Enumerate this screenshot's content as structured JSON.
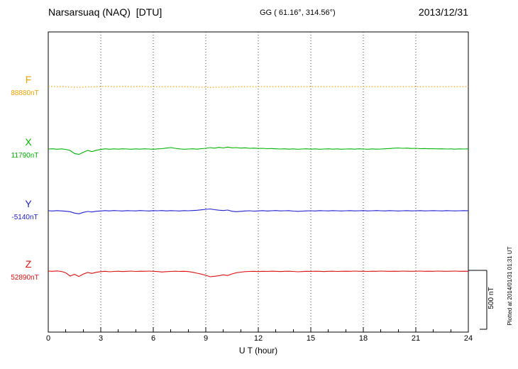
{
  "header": {
    "station": "Narsarsuaq (NAQ)  [DTU]",
    "coords": "GG ( 61.16°, 314.56°)",
    "date": "2013/12/31"
  },
  "scale_bar": {
    "label": "500 nT",
    "value_nT": 500
  },
  "right_note": "Plotted at 2014/01/31 01:31 UT",
  "chart_data": {
    "type": "line",
    "title": "Narsarsuaq (NAQ) [DTU] magnetogram 2013/12/31",
    "xlabel": "U T (hour)",
    "ylabel": "",
    "xlim": [
      0,
      24
    ],
    "x_ticks": [
      0,
      3,
      6,
      9,
      12,
      15,
      18,
      21,
      24
    ],
    "grid_hours": [
      3,
      6,
      9,
      12,
      15,
      18,
      21
    ],
    "sample_interval_hours": 0.25,
    "scale_nT": 500,
    "grid": true,
    "legend_position": "left-margin",
    "series": [
      {
        "name": "F",
        "baseline_nT": 88880,
        "baseline_label": "88880nT",
        "color": "#f2a200",
        "style": "dotted",
        "offsets_nT": [
          0,
          1,
          -1,
          0,
          -2,
          -5,
          -4,
          -6,
          -4,
          -2,
          -3,
          -1,
          0,
          1,
          0,
          -1,
          0,
          1,
          0,
          -1,
          0,
          1,
          0,
          -1,
          0,
          -1,
          -2,
          -1,
          0,
          -1,
          0,
          -1,
          -2,
          -3,
          -4,
          -5,
          -6,
          -7,
          -6,
          -5,
          -4,
          -5,
          -3,
          -2,
          -1,
          -1,
          0,
          -1,
          0,
          0,
          -1,
          0,
          -1,
          0,
          -1,
          0,
          -1,
          -1,
          0,
          -1,
          0,
          -1,
          0,
          -1,
          0,
          -1,
          0,
          -1,
          0,
          -1,
          0,
          -1,
          0,
          -1,
          0,
          -1,
          0,
          -1,
          0,
          -1,
          0,
          -1,
          0,
          -1,
          0,
          -1,
          0,
          -1,
          0,
          -1,
          0,
          -1,
          0,
          -1,
          0,
          -1,
          0
        ]
      },
      {
        "name": "X",
        "baseline_nT": 11790,
        "baseline_label": "11790nT",
        "color": "#00b400",
        "style": "solid",
        "offsets_nT": [
          0,
          2,
          -2,
          1,
          -3,
          -12,
          -38,
          -46,
          -28,
          -12,
          -22,
          -10,
          -4,
          2,
          -2,
          1,
          -1,
          2,
          0,
          -2,
          1,
          -1,
          2,
          0,
          -2,
          1,
          3,
          8,
          12,
          6,
          1,
          -2,
          0,
          2,
          -1,
          3,
          6,
          12,
          7,
          14,
          9,
          16,
          10,
          12,
          8,
          10,
          6,
          8,
          5,
          6,
          3,
          4,
          2,
          0,
          2,
          -1,
          1,
          -2,
          0,
          2,
          -1,
          1,
          -2,
          0,
          2,
          -1,
          1,
          -2,
          0,
          1,
          -1,
          2,
          0,
          -2,
          1,
          -1,
          0,
          2,
          4,
          7,
          9,
          6,
          8,
          5,
          6,
          3,
          4,
          2,
          3,
          1,
          2,
          0,
          1,
          -1,
          1,
          0,
          2
        ]
      },
      {
        "name": "Y",
        "baseline_nT": -5140,
        "baseline_label": "-5140nT",
        "color": "#2020d0",
        "style": "solid",
        "offsets_nT": [
          0,
          -2,
          1,
          -1,
          -4,
          -8,
          -20,
          -26,
          -14,
          -6,
          -10,
          -4,
          -2,
          1,
          -1,
          2,
          0,
          -2,
          1,
          0,
          -1,
          2,
          0,
          -2,
          1,
          0,
          2,
          -1,
          1,
          0,
          -2,
          1,
          0,
          2,
          4,
          8,
          12,
          15,
          9,
          5,
          2,
          6,
          -4,
          -8,
          -5,
          -2,
          0,
          -3,
          -1,
          1,
          -2,
          0,
          2,
          -1,
          0,
          1,
          -3,
          -5,
          -3,
          -1,
          0,
          -2,
          1,
          0,
          -1,
          1,
          0,
          -2,
          0,
          1,
          -1,
          0,
          1,
          -1,
          0,
          2,
          0,
          -1,
          1,
          0,
          -2,
          0,
          1,
          -1,
          0,
          1,
          -1,
          0,
          1,
          0,
          -1,
          1,
          0,
          -1,
          0,
          1,
          0
        ]
      },
      {
        "name": "Z",
        "baseline_nT": 52890,
        "baseline_label": "52890nT",
        "color": "#dd1111",
        "style": "solid",
        "offsets_nT": [
          0,
          -2,
          1,
          -3,
          -15,
          -42,
          -28,
          -46,
          -26,
          -12,
          -20,
          -10,
          -5,
          -2,
          -6,
          -3,
          -1,
          -4,
          -2,
          0,
          -3,
          -1,
          -2,
          0,
          -2,
          -4,
          -8,
          -5,
          -3,
          -1,
          -3,
          -2,
          -4,
          -10,
          -18,
          -26,
          -36,
          -48,
          -44,
          -40,
          -32,
          -38,
          -24,
          -14,
          -9,
          -5,
          -3,
          -2,
          -4,
          -2,
          -3,
          -1,
          -2,
          -4,
          -2,
          -1,
          -3,
          -6,
          -4,
          -2,
          -3,
          -1,
          -2,
          -4,
          -2,
          -1,
          -3,
          -2,
          -1,
          -2,
          0,
          -2,
          -1,
          -3,
          -1,
          -2,
          0,
          -1,
          -2,
          -1,
          -2,
          0,
          -1,
          -2,
          -1,
          0,
          -2,
          -1,
          -2,
          0,
          -1,
          -2,
          -1,
          0,
          -2,
          -1,
          -2
        ]
      }
    ]
  }
}
